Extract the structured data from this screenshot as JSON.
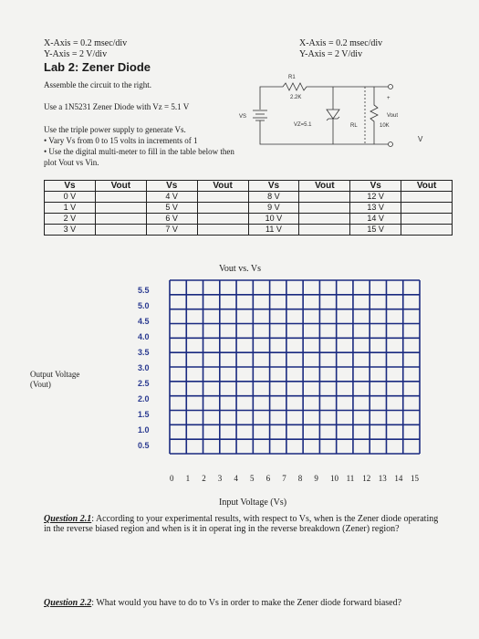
{
  "header": {
    "left_x_axis": "X-Axis = 0.2 msec/div",
    "left_y_axis": "Y-Axis = 2 V/div",
    "right_x_axis": "X-Axis = 0.2 msec/div",
    "right_y_axis": "Y-Axis = 2 V/div",
    "title": "Lab 2: Zener Diode"
  },
  "instructions": {
    "assemble": "Assemble the circuit to the right.",
    "diode": "Use a 1N5231 Zener Diode with Vz = 5.1 V",
    "supply": "Use the triple power supply to generate Vs.",
    "bullets": [
      "• Vary Vs from 0 to 15 volts in increments of 1",
      "• Use the digital multi-meter to fill in the table below then plot Vout vs Vin."
    ]
  },
  "circuit": {
    "r1": "R1",
    "r1_value": "2.2K",
    "vs": "VS",
    "vz": "VZ=5.1",
    "rl": "RL",
    "rl_value": "10K",
    "vout": "Vout",
    "plus": "+",
    "v": "V"
  },
  "table": {
    "headers": [
      "Vs",
      "Vout",
      "Vs",
      "Vout",
      "Vs",
      "Vout",
      "Vs",
      "Vout"
    ],
    "rows": [
      [
        "0 V",
        "4 V",
        "8 V",
        "12 V"
      ],
      [
        "1 V",
        "5 V",
        "9 V",
        "13 V"
      ],
      [
        "2 V",
        "6 V",
        "10 V",
        "14 V"
      ],
      [
        "3 V",
        "7 V",
        "11 V",
        "15 V"
      ]
    ]
  },
  "plot": {
    "title": "Vout vs. Vs",
    "y_label": "Output Voltage (Vout)",
    "x_label": "Input Voltage (Vs)",
    "y_ticks": [
      "5.5",
      "5.0",
      "4.5",
      "4.0",
      "3.5",
      "3.0",
      "2.5",
      "2.0",
      "1.5",
      "1.0",
      "0.5"
    ],
    "x_ticks": [
      "0",
      "1",
      "2",
      "3",
      "4",
      "5",
      "6",
      "7",
      "8",
      "9",
      "10",
      "11",
      "12",
      "13",
      "14",
      "15"
    ]
  },
  "questions": [
    {
      "label": "Question 2.1",
      "text": ": According to your experimental results, with respect to Vs, when is the Zener diode operating in the reverse biased region and when is it in operat ing in the reverse breakdown (Zener) region?"
    },
    {
      "label": "Question 2.2",
      "text": ": What would you have to do to Vs in order to make the Zener diode forward biased?"
    }
  ]
}
